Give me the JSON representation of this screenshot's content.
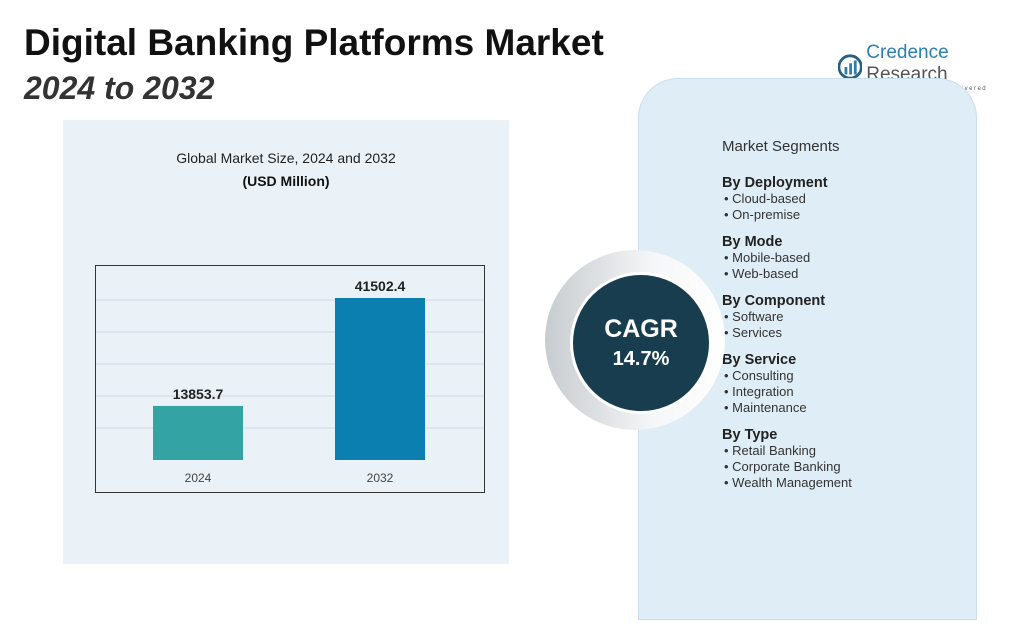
{
  "header": {
    "title": "Digital Banking Platforms Market",
    "subtitle": "2024 to 2032"
  },
  "logo": {
    "name_a": "Credence",
    "name_b": "Research",
    "tagline": "Actionable Insights Delivered"
  },
  "chart_data": {
    "type": "bar",
    "title": "Global Market Size, 2024 and 2032",
    "unit": "(USD Million)",
    "categories": [
      "2024",
      "2032"
    ],
    "values": [
      13853.7,
      41502.4
    ],
    "data_labels": [
      "13853.7",
      "41502.4"
    ],
    "colors": [
      "#33a3a3",
      "#0a7fb0"
    ],
    "grid": true
  },
  "cagr": {
    "label": "CAGR",
    "value": "14.7%"
  },
  "segments": {
    "title": "Market Segments",
    "groups": [
      {
        "name": "By Deployment",
        "items": [
          "Cloud-based",
          "On-premise"
        ]
      },
      {
        "name": "By Mode",
        "items": [
          "Mobile-based",
          "Web-based"
        ]
      },
      {
        "name": "By Component",
        "items": [
          "Software",
          "Services"
        ]
      },
      {
        "name": "By Service",
        "items": [
          "Consulting",
          "Integration",
          "Maintenance"
        ]
      },
      {
        "name": "By Type",
        "items": [
          "Retail Banking",
          "Corporate Banking",
          "Wealth Management"
        ]
      }
    ]
  }
}
